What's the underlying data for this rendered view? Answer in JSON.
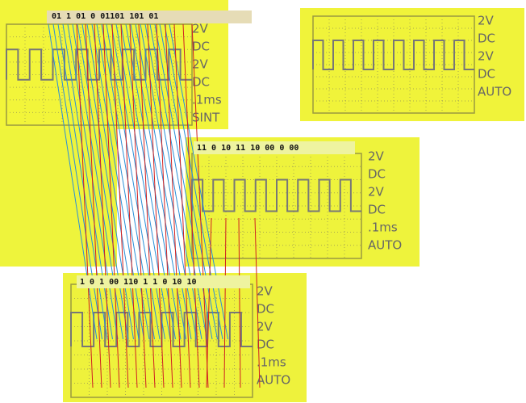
{
  "annotations": [
    "01 1 01 0 01101 101 01",
    "11 0 10 11 10 00 0 00",
    "1 0 1 00 110 1 1 0 10 10"
  ],
  "screens": [
    {
      "readouts": [
        "2V",
        "DC",
        "2V",
        "DC",
        ".1ms",
        "SINT"
      ]
    },
    {
      "readouts": [
        "2V",
        "DC",
        "2V",
        "DC",
        "AUTO"
      ]
    },
    {
      "readouts": [
        "2V",
        "DC",
        "2V",
        "DC",
        ".1ms",
        "AUTO"
      ]
    },
    {
      "readouts": [
        "2V",
        "DC",
        "2V",
        "DC",
        ".1ms",
        "AUTO"
      ]
    }
  ]
}
